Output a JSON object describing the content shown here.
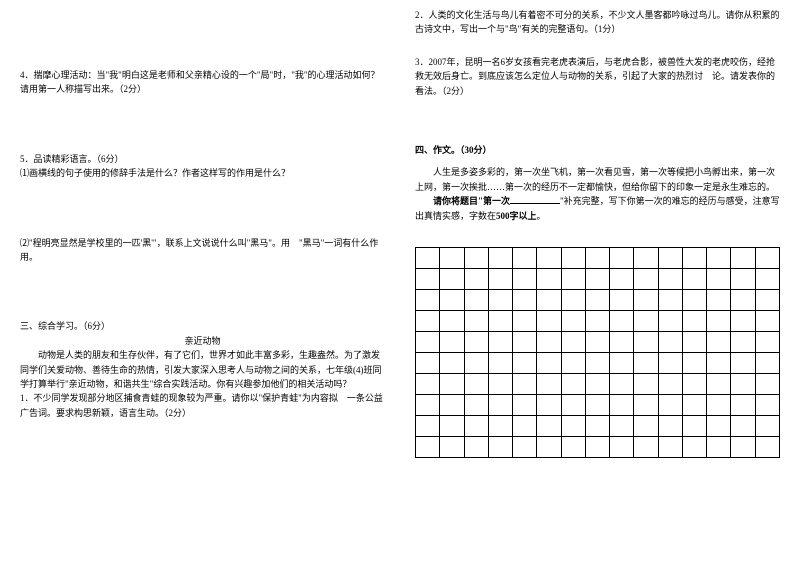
{
  "left": {
    "q4": "4．揣摩心理活动：当\"我\"明白这是老师和父亲精心设的一个\"局\"时，\"我\"的心理活动如何？请用第一人称描写出来。（2分）",
    "q5_head": "5．品读精彩语言。（6分）",
    "q5_1": "⑴画横线的句子使用的修辞手法是什么？作者这样写的作用是什么？",
    "q5_2": "⑵\"程明亮显然是学校里的一匹'黑'\"，联系上文说说什么叫\"黑马\"。用　\"黑马\"一词有什么作用。",
    "s3_title": "三、综合学习。（6分）",
    "s3_subtitle": "亲近动物",
    "s3_intro": "　　动物是人类的朋友和生存伙伴，有了它们，世界才如此丰富多彩，生趣盎然。为了激发同学们关爱动物、善待生命的热情，引发大家深入思考人与动物之间的关系，七年级(4)班同学打算举行\"亲近动物，和谐共生\"综合实践活动。你有兴趣参加他们的相关活动吗？",
    "s3_1": "1．不少同学发现部分地区捕食青蛙的现象较为严重。请你以\"保护青蛙\"为内容拟　一条公益广告词。要求构思新颖，语言生动。（2分）"
  },
  "right": {
    "s3_2": "2．人类的文化生活与鸟儿有着密不可分的关系，不少文人墨客都吟咏过鸟儿。请你从积累的古诗文中，写出一个与\"鸟\"有关的完整语句。（1分）",
    "s3_3": "3．2007年，昆明一名6岁女孩看完老虎表演后，与老虎合影，被兽性大发的老虎咬伤，经抢救无效后身亡。到底应该怎么定位人与动物的关系，引起了大家的热烈讨　论。请发表你的看法。（2分）",
    "s4_title": "四、作文。（30分）",
    "s4_intro": "　　人生是多姿多彩的，第一次坐飞机，第一次看见雪，第一次等候把小鸟孵出来，第一次上网，第一次挨批……第一次的经历不一定都愉快，但给你留下的印象一定是永生难忘的。",
    "s4_req_pre": "　　请你将题目\"第一次",
    "s4_req_post": "\"补充完整，写下你第一次的难忘的经历与感受，注意写出真情实感，字数在",
    "s4_bold": "500字以上",
    "s4_end": "。"
  },
  "grid": {
    "rows": 10,
    "cols": 15
  }
}
